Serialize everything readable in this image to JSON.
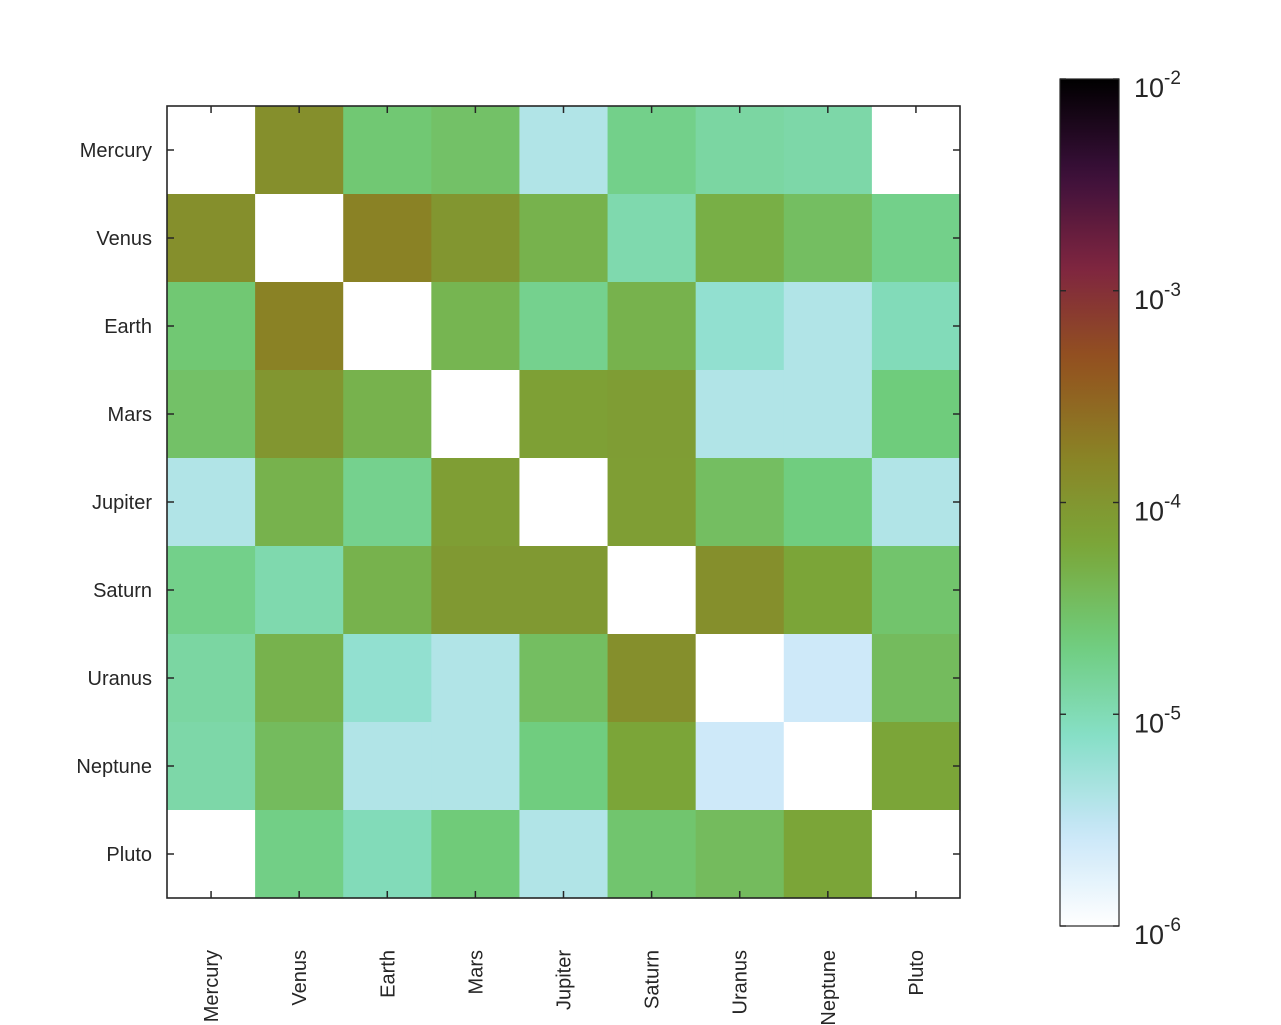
{
  "chart_data": {
    "type": "heatmap",
    "categories": [
      "Mercury",
      "Venus",
      "Earth",
      "Mars",
      "Jupiter",
      "Saturn",
      "Uranus",
      "Neptune",
      "Pluto"
    ],
    "x_categories": [
      "Mercury",
      "Venus",
      "Earth",
      "Mars",
      "Jupiter",
      "Saturn",
      "Uranus",
      "Neptune",
      "Pluto"
    ],
    "y_categories": [
      "Mercury",
      "Venus",
      "Earth",
      "Mars",
      "Jupiter",
      "Saturn",
      "Uranus",
      "Neptune",
      "Pluto"
    ],
    "values": [
      [
        null,
        0.00012,
        2.5e-05,
        3e-05,
        4e-06,
        1.8e-05,
        1.3e-05,
        1.2e-05,
        null
      ],
      [
        0.00012,
        null,
        0.00017,
        0.0001,
        4.5e-05,
        1.1e-05,
        5e-05,
        3.3e-05,
        1.8e-05
      ],
      [
        2.5e-05,
        0.00017,
        null,
        4.2e-05,
        1.7e-05,
        4.5e-05,
        6.5e-06,
        4e-06,
        9.5e-06
      ],
      [
        3e-05,
        0.0001,
        4.5e-05,
        null,
        7.5e-05,
        8.2e-05,
        4e-06,
        4e-06,
        2.2e-05
      ],
      [
        4e-06,
        4.5e-05,
        1.7e-05,
        8e-05,
        null,
        8e-05,
        3.3e-05,
        2.1e-05,
        4e-06
      ],
      [
        1.8e-05,
        1.1e-05,
        4.5e-05,
        9e-05,
        9e-05,
        null,
        0.00012,
        6.5e-05,
        2.8e-05
      ],
      [
        1.3e-05,
        4.5e-05,
        6.5e-06,
        4e-06,
        3.3e-05,
        0.00012,
        null,
        2.5e-06,
        3.5e-05
      ],
      [
        1.2e-05,
        3.5e-05,
        4e-06,
        4e-06,
        2.1e-05,
        6.5e-05,
        2.5e-06,
        null,
        6.5e-05
      ],
      [
        null,
        1.9e-05,
        9.5e-06,
        2.3e-05,
        4e-06,
        2.7e-05,
        3.5e-05,
        6.5e-05,
        null
      ]
    ],
    "color_scale": "log",
    "colorbar": {
      "min": 1e-06,
      "max": 0.01,
      "tick_values": [
        1e-06,
        1e-05,
        0.0001,
        0.001,
        0.01
      ],
      "tick_bases": [
        "10",
        "10",
        "10",
        "10",
        "10"
      ],
      "tick_exponents": [
        "-6",
        "-5",
        "-4",
        "-3",
        "-2"
      ]
    },
    "colormap": [
      "#ffffff",
      "#c8e6f8",
      "#87dfc8",
      "#6fcd7d",
      "#7aa83a",
      "#8a8325",
      "#93521f",
      "#7f2540",
      "#3a0f3a",
      "#000000"
    ],
    "missing_color": "#ffffff",
    "title": "",
    "xlabel": "",
    "ylabel": "",
    "grid": false
  }
}
